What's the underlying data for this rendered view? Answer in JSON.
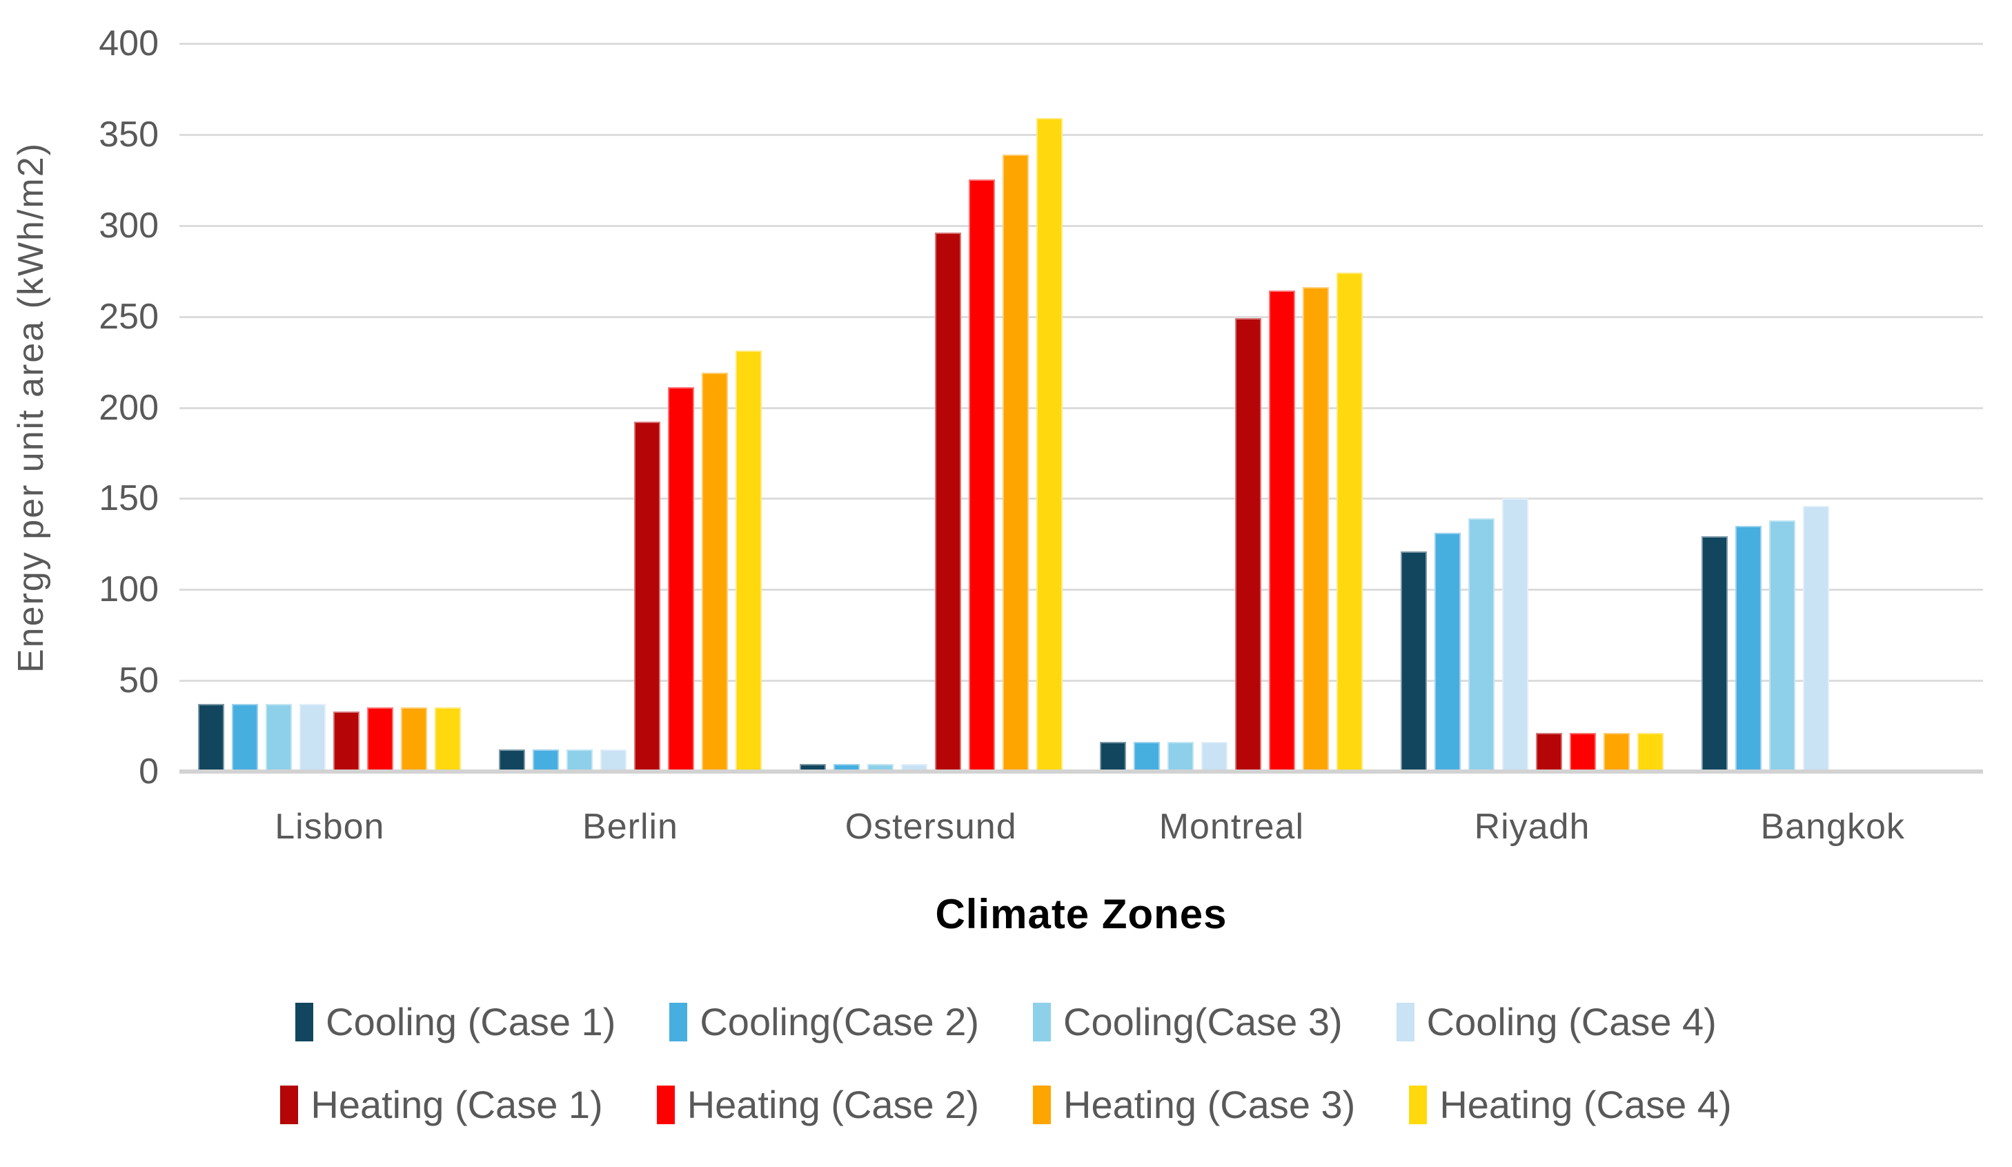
{
  "chart_data": {
    "type": "bar",
    "title": "",
    "xlabel": "Climate Zones",
    "ylabel": "Energy per unit area (kWh/m2)",
    "ylim": [
      0,
      400
    ],
    "ytick_step": 50,
    "ytick_labels": [
      "0",
      "50",
      "100",
      "150",
      "200",
      "250",
      "300",
      "350",
      "400"
    ],
    "grid": "horizontal",
    "legend_position": "bottom",
    "categories": [
      "Lisbon",
      "Berlin",
      "Ostersund",
      "Montreal",
      "Riyadh",
      "Bangkok"
    ],
    "series": [
      {
        "name": "Cooling (Case 1)",
        "color": "#11465E",
        "values": [
          36,
          11,
          3,
          15,
          120,
          128
        ]
      },
      {
        "name": "Cooling(Case 2)",
        "color": "#47AEE0",
        "values": [
          36,
          11,
          3,
          15,
          130,
          134
        ]
      },
      {
        "name": "Cooling(Case 3)",
        "color": "#8ED0EA",
        "values": [
          36,
          11,
          3,
          15,
          138,
          137
        ]
      },
      {
        "name": "Cooling (Case 4)",
        "color": "#C9E2F4",
        "values": [
          36,
          11,
          3,
          15,
          149,
          145
        ]
      },
      {
        "name": "Heating (Case 1)",
        "color": "#B50506",
        "values": [
          32,
          191,
          295,
          248,
          20,
          0
        ]
      },
      {
        "name": "Heating (Case 2)",
        "color": "#FE0000",
        "values": [
          34,
          210,
          324,
          263,
          20,
          0
        ]
      },
      {
        "name": "Heating (Case 3)",
        "color": "#FFA500",
        "values": [
          34,
          218,
          338,
          265,
          20,
          0
        ]
      },
      {
        "name": "Heating (Case 4)",
        "color": "#FFD90D",
        "values": [
          34,
          230,
          358,
          273,
          20,
          0
        ]
      }
    ],
    "legend_rows": [
      [
        0,
        1,
        2,
        3
      ],
      [
        4,
        5,
        6,
        7
      ]
    ]
  },
  "style_colors": {
    "gridline": "#DCDCDC",
    "axis_line": "#D2D2D2",
    "axis_text": "#595959",
    "x_title_text": "#000000",
    "background": "#FFFFFF"
  }
}
